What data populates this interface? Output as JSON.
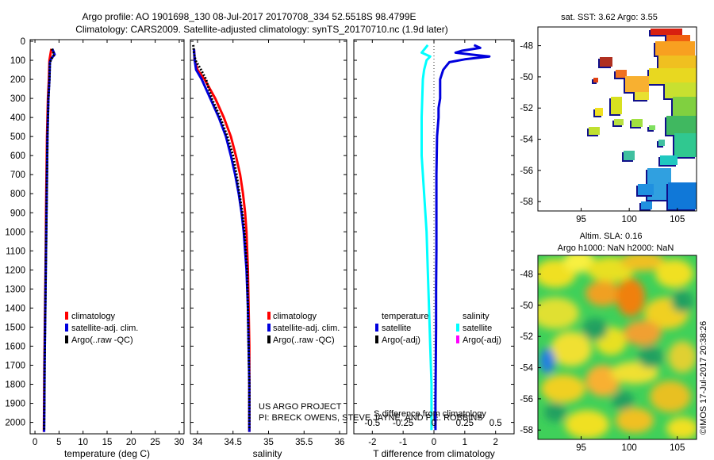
{
  "header": {
    "title_line1": "Argo profile: AO 1901698_130 08-Jul-2017 20170708_334 52.5518S 98.4799E",
    "title_line2": "Climatology: CARS2009. Satellite-adjusted climatology: synTS_20170710.nc (1.9d later)"
  },
  "colors": {
    "climatology": "#ff0000",
    "satellite": "#0000dd",
    "argo": "#000000",
    "sal_sat": "#00ffff",
    "sal_argo": "#ff00ff"
  },
  "chart_data": [
    {
      "type": "line",
      "panel": "temperature",
      "xlabel": "temperature (deg C)",
      "xlim": [
        -1,
        31
      ],
      "xticks": [
        0,
        5,
        10,
        15,
        20,
        25,
        30
      ],
      "xtick_labels": [
        "0",
        "5",
        "10",
        "15",
        "20",
        "25",
        "30"
      ],
      "ylim": [
        2060,
        0
      ],
      "yticks": [
        0,
        100,
        200,
        300,
        400,
        500,
        600,
        700,
        800,
        900,
        1000,
        1100,
        1200,
        1300,
        1400,
        1500,
        1600,
        1700,
        1800,
        1900,
        2000
      ],
      "legend": [
        "climatology",
        "satellite-adj. clim.",
        "Argo(..raw -QC)"
      ],
      "series": [
        {
          "name": "climatology",
          "color": "#ff0000",
          "depth": [
            40,
            100,
            200,
            300,
            400,
            500,
            700,
            900,
            1100,
            1300,
            1500,
            1700,
            1900,
            2050
          ],
          "values": [
            3.4,
            3.0,
            2.9,
            2.7,
            2.6,
            2.5,
            2.4,
            2.3,
            2.25,
            2.15,
            2.05,
            1.95,
            1.9,
            1.85
          ]
        },
        {
          "name": "satellite-adj. clim.",
          "color": "#0000dd",
          "depth": [
            40,
            70,
            90,
            110,
            200,
            300,
            400,
            500,
            700,
            900,
            1100,
            1300,
            1500,
            1700,
            1900,
            2050
          ],
          "values": [
            3.6,
            4.1,
            3.4,
            3.1,
            3.0,
            2.8,
            2.7,
            2.6,
            2.5,
            2.4,
            2.3,
            2.2,
            2.1,
            2.0,
            1.95,
            1.9
          ]
        },
        {
          "name": "Argo(..raw -QC)",
          "color": "#000000",
          "depth": [
            40,
            70,
            90,
            110,
            200,
            300,
            400,
            500,
            700,
            900,
            1100,
            1300,
            1500,
            1700,
            1900,
            2040
          ],
          "values": [
            3.5,
            4.0,
            3.5,
            3.1,
            3.0,
            2.8,
            2.7,
            2.6,
            2.5,
            2.4,
            2.3,
            2.2,
            2.1,
            2.0,
            1.95,
            1.9
          ]
        }
      ]
    },
    {
      "type": "line",
      "panel": "salinity",
      "xlabel": "salinity",
      "xlim": [
        33.9,
        36.1
      ],
      "xticks": [
        34,
        34.5,
        35,
        35.5,
        36
      ],
      "xtick_labels": [
        "34",
        "34.5",
        "35",
        "35.5",
        "36"
      ],
      "ylim": [
        2060,
        0
      ],
      "legend": [
        "climatology",
        "satellite-adj. clim.",
        "Argo(..raw -QC)"
      ],
      "annotation": [
        "US ARGO PROJECT",
        "PI: BRECK OWENS, STEVE JAYNE, AND P.E. ROBBINS"
      ],
      "series": [
        {
          "name": "climatology",
          "color": "#ff0000",
          "depth": [
            40,
            100,
            150,
            200,
            300,
            400,
            500,
            600,
            700,
            800,
            900,
            1000,
            1200,
            1400,
            1600,
            1800,
            2050
          ],
          "values": [
            33.95,
            33.96,
            34.0,
            34.1,
            34.25,
            34.37,
            34.47,
            34.54,
            34.6,
            34.64,
            34.67,
            34.69,
            34.71,
            34.72,
            34.73,
            34.73,
            34.73
          ]
        },
        {
          "name": "satellite-adj. clim.",
          "color": "#0000dd",
          "depth": [
            40,
            100,
            150,
            200,
            300,
            400,
            500,
            600,
            700,
            800,
            900,
            1000,
            1200,
            1400,
            1600,
            1800,
            2050
          ],
          "values": [
            33.95,
            33.96,
            33.98,
            34.06,
            34.18,
            34.3,
            34.4,
            34.47,
            34.53,
            34.58,
            34.62,
            34.65,
            34.69,
            34.71,
            34.72,
            34.73,
            34.73
          ]
        },
        {
          "name": "Argo(..raw -QC)",
          "color": "#000000",
          "depth": [
            20,
            60,
            100,
            150,
            200,
            300,
            400,
            500,
            600,
            700,
            800,
            900,
            1000,
            1200,
            1400,
            1600,
            1800,
            2040
          ],
          "values": [
            33.94,
            33.95,
            33.97,
            34.05,
            34.12,
            34.2,
            34.32,
            34.42,
            34.5,
            34.55,
            34.59,
            34.63,
            34.66,
            34.7,
            34.71,
            34.72,
            34.73,
            34.73
          ]
        }
      ]
    },
    {
      "type": "line",
      "panel": "difference",
      "xlabel": "T difference from climatology",
      "xlabel_top": "S difference from climatology",
      "xlim": [
        -2.6,
        2.6
      ],
      "xticks": [
        -2,
        -1,
        0,
        1,
        2
      ],
      "xtick_labels": [
        "-2",
        "-1",
        "0",
        "1",
        "2"
      ],
      "top_ticks": [
        -0.5,
        -0.25,
        0,
        0.25,
        0.5
      ],
      "top_tick_labels": [
        "-0.5",
        "-0.25",
        "0",
        "0.25",
        "0.5"
      ],
      "ylim": [
        2060,
        0
      ],
      "legend_headers": [
        "temperature",
        "salinity"
      ],
      "legend_left": [
        "satellite",
        "Argo(-adj)"
      ],
      "legend_right": [
        "satellite",
        "Argo(-adj)"
      ],
      "series": [
        {
          "name": "T satellite",
          "color": "#0000dd",
          "depth": [
            20,
            35,
            50,
            60,
            70,
            80,
            95,
            110,
            130,
            150,
            200,
            250,
            300,
            350,
            400,
            500,
            700,
            900,
            1100,
            1300,
            1500,
            1700,
            1900,
            2040
          ],
          "values": [
            1.3,
            1.5,
            0.9,
            0.7,
            1.2,
            1.8,
            1.0,
            0.5,
            0.4,
            0.3,
            0.2,
            0.2,
            0.2,
            0.15,
            0.15,
            0.1,
            0.08,
            0.08,
            0.08,
            0.07,
            0.07,
            0.06,
            0.05,
            0.05
          ]
        },
        {
          "name": "S satellite",
          "color": "#00ffff",
          "depth": [
            20,
            60,
            80,
            100,
            150,
            200,
            400,
            600,
            800,
            1000,
            1200,
            1400,
            1600,
            1800,
            2040
          ],
          "values": [
            -0.05,
            -0.1,
            -0.03,
            -0.06,
            -0.08,
            -0.09,
            -0.1,
            -0.1,
            -0.08,
            -0.06,
            -0.05,
            -0.04,
            -0.03,
            -0.02,
            -0.02
          ]
        }
      ]
    },
    {
      "type": "heatmap",
      "panel": "sst_map",
      "title": "sat. SST: 3.62 Argo: 3.55",
      "xticks": [
        95,
        100,
        105
      ],
      "yticks": [
        -48,
        -50,
        -52,
        -54,
        -56,
        -58
      ],
      "xlim": [
        90.5,
        107
      ],
      "ylim": [
        -58.6,
        -46.8
      ]
    },
    {
      "type": "heatmap",
      "panel": "sla_map",
      "title_line1": "Altim. SLA: 0.16",
      "title_line2": "Argo h1000: NaN h2000: NaN",
      "xticks": [
        95,
        100,
        105
      ],
      "yticks": [
        -48,
        -50,
        -52,
        -54,
        -56,
        -58
      ],
      "xlim": [
        90.5,
        107
      ],
      "ylim": [
        -58.6,
        -46.8
      ],
      "side_label": "©IMOS 17-Jul-2017 20:38:26"
    }
  ]
}
